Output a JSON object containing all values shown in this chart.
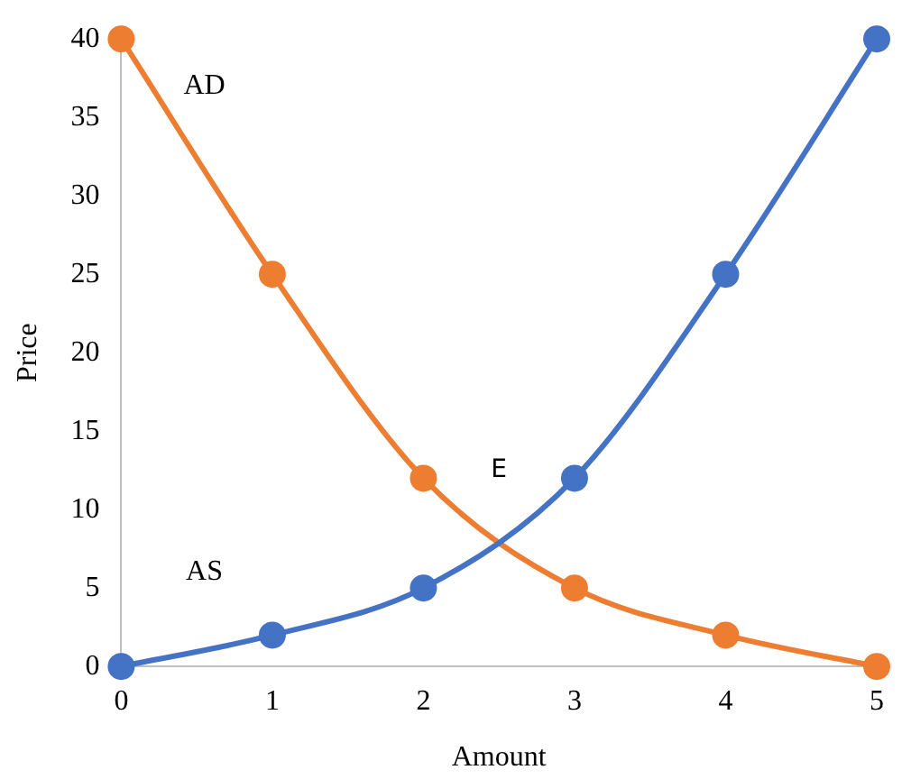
{
  "chart_data": {
    "type": "line",
    "xlabel": "Amount",
    "ylabel": "Price",
    "x": [
      0,
      1,
      2,
      3,
      4,
      5
    ],
    "xlim": [
      0,
      5
    ],
    "xticks": [
      0,
      1,
      2,
      3,
      4,
      5
    ],
    "ylim": [
      0,
      40
    ],
    "yticks": [
      0,
      5,
      10,
      15,
      20,
      25,
      30,
      35,
      40
    ],
    "series": [
      {
        "name": "AS",
        "color": "#4472c4",
        "values": [
          0,
          2,
          5,
          12,
          25,
          40
        ]
      },
      {
        "name": "AD",
        "color": "#ed7d31",
        "values": [
          40,
          25,
          12,
          5,
          2,
          0
        ]
      }
    ],
    "annotations": [
      "E"
    ],
    "grid": false,
    "legend": false,
    "marker": "circle",
    "line_style": "solid"
  }
}
